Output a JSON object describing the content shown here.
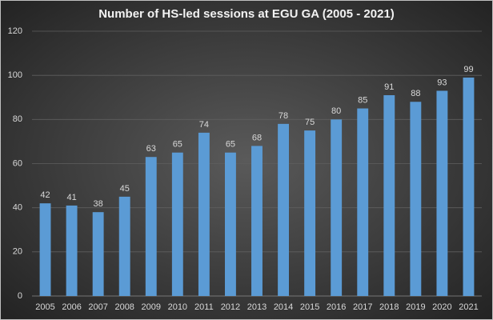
{
  "chart_data": {
    "type": "bar",
    "title": "Number of HS-led sessions at EGU GA (2005 - 2021)",
    "categories": [
      "2005",
      "2006",
      "2007",
      "2008",
      "2009",
      "2010",
      "2011",
      "2012",
      "2013",
      "2014",
      "2015",
      "2016",
      "2017",
      "2018",
      "2019",
      "2020",
      "2021"
    ],
    "values": [
      42,
      41,
      38,
      45,
      63,
      65,
      74,
      65,
      68,
      78,
      75,
      80,
      85,
      91,
      88,
      93,
      99
    ],
    "color": "#5b9bd5",
    "ylim": [
      0,
      120
    ],
    "yticks": [
      0,
      20,
      40,
      60,
      80,
      100,
      120
    ],
    "grid": true
  }
}
